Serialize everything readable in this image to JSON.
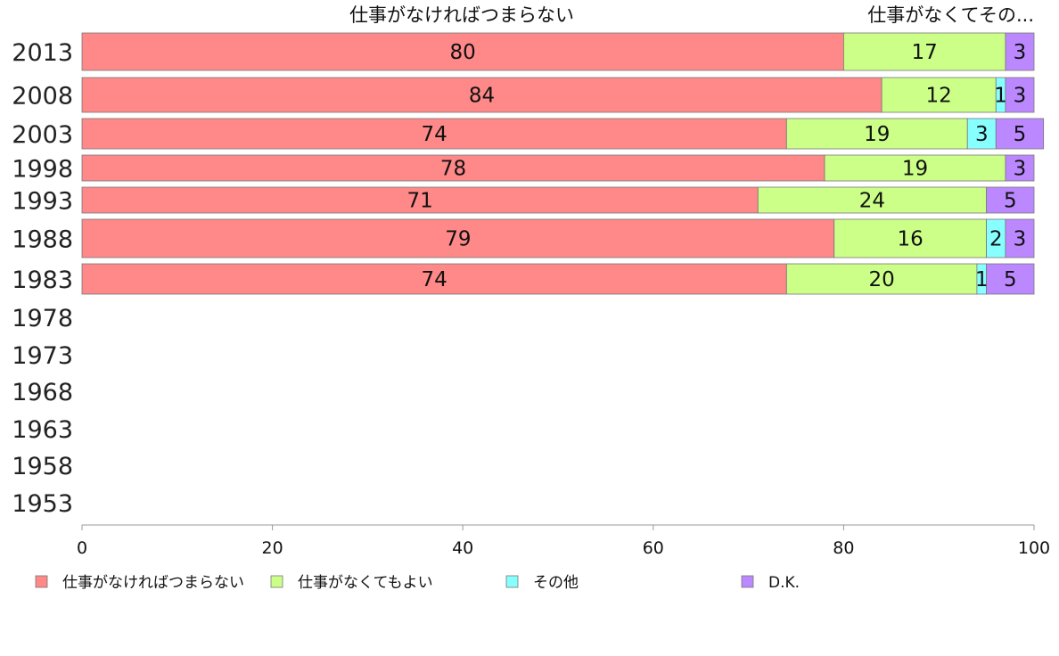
{
  "chart_data": {
    "type": "bar",
    "orientation": "horizontal",
    "stacked": true,
    "categories": [
      "2013",
      "2008",
      "2003",
      "1998",
      "1993",
      "1988",
      "1983",
      "1978",
      "1973",
      "1968",
      "1963",
      "1958",
      "1953"
    ],
    "series": [
      {
        "name": "仕事がなければつまらない",
        "color": "#ff8888",
        "values": [
          80,
          84,
          74,
          78,
          71,
          79,
          74,
          null,
          null,
          null,
          null,
          null,
          null
        ]
      },
      {
        "name": "仕事がなくてもよい",
        "color": "#ccff88",
        "values": [
          17,
          12,
          19,
          19,
          24,
          16,
          20,
          null,
          null,
          null,
          null,
          null,
          null
        ]
      },
      {
        "name": "その他",
        "color": "#88ffff",
        "values": [
          null,
          1,
          3,
          null,
          null,
          2,
          1,
          null,
          null,
          null,
          null,
          null,
          null
        ]
      },
      {
        "name": "D.K.",
        "color": "#bb88ff",
        "values": [
          3,
          3,
          5,
          3,
          5,
          3,
          5,
          null,
          null,
          null,
          null,
          null,
          null
        ]
      }
    ],
    "top_labels": [
      "仕事がなければつまらない",
      "仕事がなくてその..."
    ],
    "xlim": [
      0,
      100
    ],
    "xticks": [
      "0",
      "20",
      "40",
      "60",
      "80",
      "100"
    ],
    "grid": false,
    "legend_position": "bottom"
  }
}
